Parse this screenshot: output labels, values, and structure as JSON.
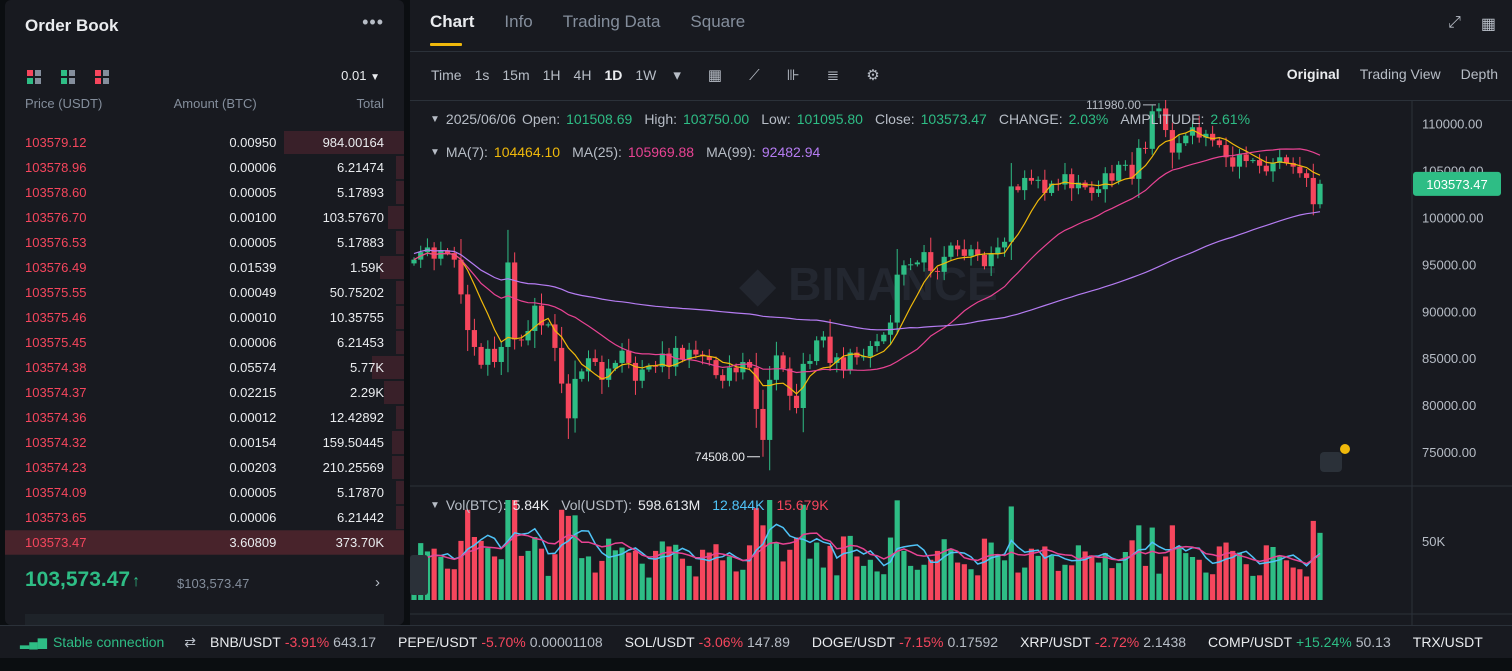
{
  "order_book": {
    "title": "Order Book",
    "more_icon": "more-dots-icon",
    "precision": "0.01",
    "headers": {
      "price": "Price (USDT)",
      "amount": "Amount (BTC)",
      "total": "Total"
    },
    "asks": [
      {
        "price": "103579.12",
        "amount": "0.00950",
        "total": "984.00164",
        "depth": 0.3
      },
      {
        "price": "103578.96",
        "amount": "0.00006",
        "total": "6.21474",
        "depth": 0.02
      },
      {
        "price": "103578.60",
        "amount": "0.00005",
        "total": "5.17893",
        "depth": 0.02
      },
      {
        "price": "103576.70",
        "amount": "0.00100",
        "total": "103.57670",
        "depth": 0.04
      },
      {
        "price": "103576.53",
        "amount": "0.00005",
        "total": "5.17883",
        "depth": 0.02
      },
      {
        "price": "103576.49",
        "amount": "0.01539",
        "total": "1.59K",
        "depth": 0.06
      },
      {
        "price": "103575.55",
        "amount": "0.00049",
        "total": "50.75202",
        "depth": 0.02
      },
      {
        "price": "103575.46",
        "amount": "0.00010",
        "total": "10.35755",
        "depth": 0.02
      },
      {
        "price": "103575.45",
        "amount": "0.00006",
        "total": "6.21453",
        "depth": 0.02
      },
      {
        "price": "103574.38",
        "amount": "0.05574",
        "total": "5.77K",
        "depth": 0.08
      },
      {
        "price": "103574.37",
        "amount": "0.02215",
        "total": "2.29K",
        "depth": 0.05
      },
      {
        "price": "103574.36",
        "amount": "0.00012",
        "total": "12.42892",
        "depth": 0.02
      },
      {
        "price": "103574.32",
        "amount": "0.00154",
        "total": "159.50445",
        "depth": 0.03
      },
      {
        "price": "103574.23",
        "amount": "0.00203",
        "total": "210.25569",
        "depth": 0.03
      },
      {
        "price": "103574.09",
        "amount": "0.00005",
        "total": "5.17870",
        "depth": 0.02
      },
      {
        "price": "103573.65",
        "amount": "0.00006",
        "total": "6.21442",
        "depth": 0.02
      },
      {
        "price": "103573.47",
        "amount": "3.60809",
        "total": "373.70K",
        "depth": 1.0
      }
    ],
    "last_price": "103,573.47",
    "last_price_usd": "$103,573.47"
  },
  "tabs": [
    "Chart",
    "Info",
    "Trading Data",
    "Square"
  ],
  "toolbar": {
    "intervals": [
      "Time",
      "1s",
      "15m",
      "1H",
      "4H",
      "1D",
      "1W"
    ],
    "active_interval": "1D",
    "views": [
      "Original",
      "Trading View",
      "Depth"
    ],
    "active_view": "Original"
  },
  "ohlc": {
    "date": "2025/06/06",
    "open_label": "Open:",
    "open": "101508.69",
    "high_label": "High:",
    "high": "103750.00",
    "low_label": "Low:",
    "low": "101095.80",
    "close_label": "Close:",
    "close": "103573.47",
    "change_label": "CHANGE:",
    "change": "2.03%",
    "amp_label": "AMPLITUDE:",
    "amp": "2.61%"
  },
  "ma": {
    "ma7_label": "MA(7):",
    "ma7": "104464.10",
    "ma25_label": "MA(25):",
    "ma25": "105969.88",
    "ma99_label": "MA(99):",
    "ma99": "92482.94"
  },
  "vol": {
    "btc_label": "Vol(BTC):",
    "btc": "5.84K",
    "usdt_label": "Vol(USDT):",
    "usdt": "598.613M",
    "ma1": "12.844K",
    "ma2": "15.679K"
  },
  "chart_data": {
    "type": "candlestick",
    "y_ticks": [
      "110000.00",
      "105000.00",
      "100000.00",
      "95000.00",
      "90000.00",
      "85000.00",
      "80000.00",
      "75000.00"
    ],
    "ylim": [
      71500,
      112500
    ],
    "current_price": "103573.47",
    "high_marker": "111980.00",
    "low_marker": "74508.00",
    "vol_tick": "50K",
    "closes": [
      95500,
      96300,
      96800,
      95600,
      96500,
      96200,
      95500,
      91800,
      88000,
      86200,
      84300,
      86000,
      84600,
      86200,
      95200,
      87000,
      86900,
      87900,
      90600,
      88500,
      88600,
      86100,
      82300,
      78600,
      82800,
      83600,
      85000,
      84600,
      82700,
      83900,
      84500,
      85800,
      84500,
      82600,
      83800,
      84200,
      84100,
      85500,
      84100,
      86100,
      84900,
      85900,
      85400,
      85200,
      84800,
      83200,
      82600,
      84000,
      83500,
      84600,
      84000,
      79600,
      76300,
      82700,
      85300,
      83900,
      81000,
      79700,
      84400,
      84700,
      86900,
      87300,
      84500,
      85100,
      83700,
      85600,
      85100,
      85200,
      86300,
      86800,
      87500,
      88800,
      93900,
      94900,
      95000,
      95200,
      96300,
      94300,
      94200,
      95800,
      97000,
      96600,
      95900,
      96600,
      96000,
      94800,
      96100,
      96800,
      97400,
      103300,
      102900,
      104200,
      103900,
      104000,
      102600,
      103600,
      103500,
      104600,
      103100,
      103700,
      103200,
      102600,
      103000,
      104700,
      103900,
      105600,
      105600,
      104100,
      107400,
      107300,
      111300,
      111600,
      109300,
      106900,
      107900,
      108700,
      109600,
      108500,
      108900,
      108200,
      107700,
      106400,
      105400,
      106700,
      106000,
      106100,
      105500,
      104900,
      105800,
      106400,
      105800,
      105400,
      104700,
      104200,
      101400,
      103573
    ]
  },
  "status": {
    "connection": "Stable connection",
    "tickers": [
      {
        "symbol": "BNB/USDT",
        "change": "-3.91%",
        "price": "643.17",
        "up": false
      },
      {
        "symbol": "PEPE/USDT",
        "change": "-5.70%",
        "price": "0.00001108",
        "up": false
      },
      {
        "symbol": "SOL/USDT",
        "change": "-3.06%",
        "price": "147.89",
        "up": false
      },
      {
        "symbol": "DOGE/USDT",
        "change": "-7.15%",
        "price": "0.17592",
        "up": false
      },
      {
        "symbol": "XRP/USDT",
        "change": "-2.72%",
        "price": "2.1438",
        "up": false
      },
      {
        "symbol": "COMP/USDT",
        "change": "+15.24%",
        "price": "50.13",
        "up": true
      },
      {
        "symbol": "TRX/USDT",
        "change": "",
        "price": "",
        "up": false
      }
    ]
  },
  "colors": {
    "up": "#2ebd85",
    "down": "#f6465d",
    "accent": "#f0b90b",
    "ma7": "#f0b90b",
    "ma25": "#e84393",
    "ma99": "#b57cf2",
    "vol_ma1": "#4fc3f7",
    "vol_ma2": "#e84393"
  }
}
